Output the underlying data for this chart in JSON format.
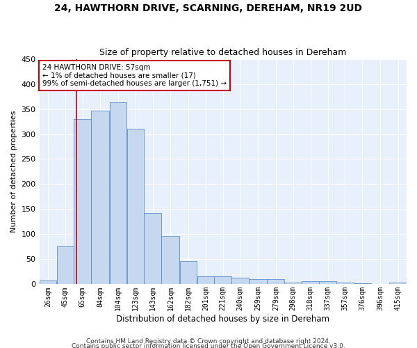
{
  "title": "24, HAWTHORN DRIVE, SCARNING, DEREHAM, NR19 2UD",
  "subtitle": "Size of property relative to detached houses in Dereham",
  "xlabel": "Distribution of detached houses by size in Dereham",
  "ylabel": "Number of detached properties",
  "bar_color": "#c5d8f0",
  "bar_edge_color": "#5b8fc9",
  "annotation_box_text": "24 HAWTHORN DRIVE: 57sqm\n← 1% of detached houses are smaller (17)\n99% of semi-detached houses are larger (1,751) →",
  "annotation_box_color": "#ffffff",
  "annotation_box_edge_color": "#cc0000",
  "vline_x": 57,
  "vline_color": "#cc0000",
  "categories": [
    "26sqm",
    "45sqm",
    "65sqm",
    "84sqm",
    "104sqm",
    "123sqm",
    "143sqm",
    "162sqm",
    "182sqm",
    "201sqm",
    "221sqm",
    "240sqm",
    "259sqm",
    "279sqm",
    "298sqm",
    "318sqm",
    "337sqm",
    "357sqm",
    "376sqm",
    "396sqm",
    "415sqm"
  ],
  "bin_edges": [
    16.5,
    35.5,
    54.5,
    73.5,
    93.5,
    112.5,
    131.5,
    150.5,
    170.5,
    189.5,
    208.5,
    227.5,
    246.5,
    266.5,
    285.5,
    304.5,
    323.5,
    342.5,
    361.5,
    380.5,
    400.5,
    419.5
  ],
  "values": [
    7,
    75,
    330,
    347,
    363,
    310,
    143,
    97,
    46,
    16,
    16,
    13,
    10,
    10,
    4,
    6,
    6,
    4,
    2,
    1,
    3
  ],
  "ylim": [
    0,
    450
  ],
  "yticks": [
    0,
    50,
    100,
    150,
    200,
    250,
    300,
    350,
    400,
    450
  ],
  "bg_color": "#e8f0fb",
  "footnote1": "Contains HM Land Registry data © Crown copyright and database right 2024.",
  "footnote2": "Contains public sector information licensed under the Open Government Licence v3.0."
}
